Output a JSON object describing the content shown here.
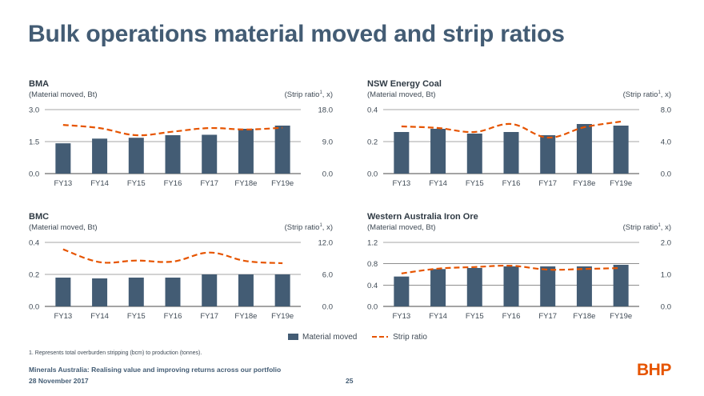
{
  "page": {
    "title": "Bulk operations material moved and strip ratios",
    "legend": {
      "bars_label": "Material moved",
      "line_label": "Strip ratio"
    },
    "footnote": "1.  Represents total overburden stripping (bcm) to production (tonnes).",
    "footer_line1": "Minerals Australia: Realising value and improving returns across our portfolio",
    "footer_line2": "28 November 2017",
    "page_number": "25",
    "logo": "BHP",
    "colors": {
      "bar": "#435c74",
      "line": "#e65400",
      "grid": "#4a4a4a",
      "text": "#3f4a55"
    }
  },
  "chart_data": [
    {
      "type": "bar",
      "title": "BMA",
      "left_label": "(Material moved, Bt)",
      "right_label_prefix": "(Strip ratio",
      "right_label_sup": "1",
      "right_label_suffix": ", x)",
      "categories": [
        "FY13",
        "FY14",
        "FY15",
        "FY16",
        "FY17",
        "FY18e",
        "FY19e"
      ],
      "left_ticks": [
        "0.0",
        "1.5",
        "3.0"
      ],
      "right_ticks": [
        "0.0",
        "9.0",
        "18.0"
      ],
      "ylim": [
        0,
        3.0
      ],
      "y2lim": [
        0,
        18.0
      ],
      "series": [
        {
          "name": "Material moved",
          "axis": "left",
          "values": [
            1.42,
            1.64,
            1.68,
            1.8,
            1.82,
            2.1,
            2.25
          ]
        },
        {
          "name": "Strip ratio",
          "axis": "right",
          "values": [
            13.7,
            12.8,
            10.8,
            11.8,
            12.8,
            12.4,
            12.9
          ]
        }
      ]
    },
    {
      "type": "bar",
      "title": "NSW Energy Coal",
      "left_label": "(Material moved, Bt)",
      "right_label_prefix": "(Strip ratio",
      "right_label_sup": "1",
      "right_label_suffix": ", x)",
      "categories": [
        "FY13",
        "FY14",
        "FY15",
        "FY16",
        "FY17",
        "FY18e",
        "FY19e"
      ],
      "left_ticks": [
        "0.0",
        "0.2",
        "0.4"
      ],
      "right_ticks": [
        "0.0",
        "4.0",
        "8.0"
      ],
      "ylim": [
        0,
        0.4
      ],
      "y2lim": [
        0,
        8.0
      ],
      "series": [
        {
          "name": "Material moved",
          "axis": "left",
          "values": [
            0.26,
            0.28,
            0.25,
            0.26,
            0.24,
            0.31,
            0.3
          ]
        },
        {
          "name": "Strip ratio",
          "axis": "right",
          "values": [
            5.9,
            5.7,
            5.2,
            6.2,
            4.5,
            5.8,
            6.5
          ]
        }
      ]
    },
    {
      "type": "bar",
      "title": "BMC",
      "left_label": "(Material moved, Bt)",
      "right_label_prefix": "(Strip ratio",
      "right_label_sup": "1",
      "right_label_suffix": ", x)",
      "categories": [
        "FY13",
        "FY14",
        "FY15",
        "FY16",
        "FY17",
        "FY18e",
        "FY19e"
      ],
      "left_ticks": [
        "0.0",
        "0.2",
        "0.4"
      ],
      "right_ticks": [
        "0.0",
        "6.0",
        "12.0"
      ],
      "ylim": [
        0,
        0.4
      ],
      "y2lim": [
        0,
        12.0
      ],
      "series": [
        {
          "name": "Material moved",
          "axis": "left",
          "values": [
            0.18,
            0.175,
            0.18,
            0.18,
            0.2,
            0.2,
            0.2
          ]
        },
        {
          "name": "Strip ratio",
          "axis": "right",
          "values": [
            10.7,
            8.3,
            8.6,
            8.4,
            10.1,
            8.5,
            8.1
          ]
        }
      ]
    },
    {
      "type": "bar",
      "title": "Western Australia Iron Ore",
      "left_label": "(Material moved, Bt)",
      "right_label_prefix": "(Strip ratio",
      "right_label_sup": "1",
      "right_label_suffix": ", x)",
      "categories": [
        "FY13",
        "FY14",
        "FY15",
        "FY16",
        "FY17",
        "FY18e",
        "FY19e"
      ],
      "left_ticks": [
        "0.0",
        "0.4",
        "0.8",
        "1.2"
      ],
      "right_ticks": [
        "0.0",
        "1.0",
        "2.0"
      ],
      "ylim": [
        0,
        1.2
      ],
      "y2lim": [
        0,
        2.0
      ],
      "series": [
        {
          "name": "Material moved",
          "axis": "left",
          "values": [
            0.56,
            0.7,
            0.72,
            0.75,
            0.75,
            0.75,
            0.78
          ]
        },
        {
          "name": "Strip ratio",
          "axis": "right",
          "values": [
            1.03,
            1.18,
            1.23,
            1.27,
            1.15,
            1.17,
            1.2
          ]
        }
      ]
    }
  ]
}
